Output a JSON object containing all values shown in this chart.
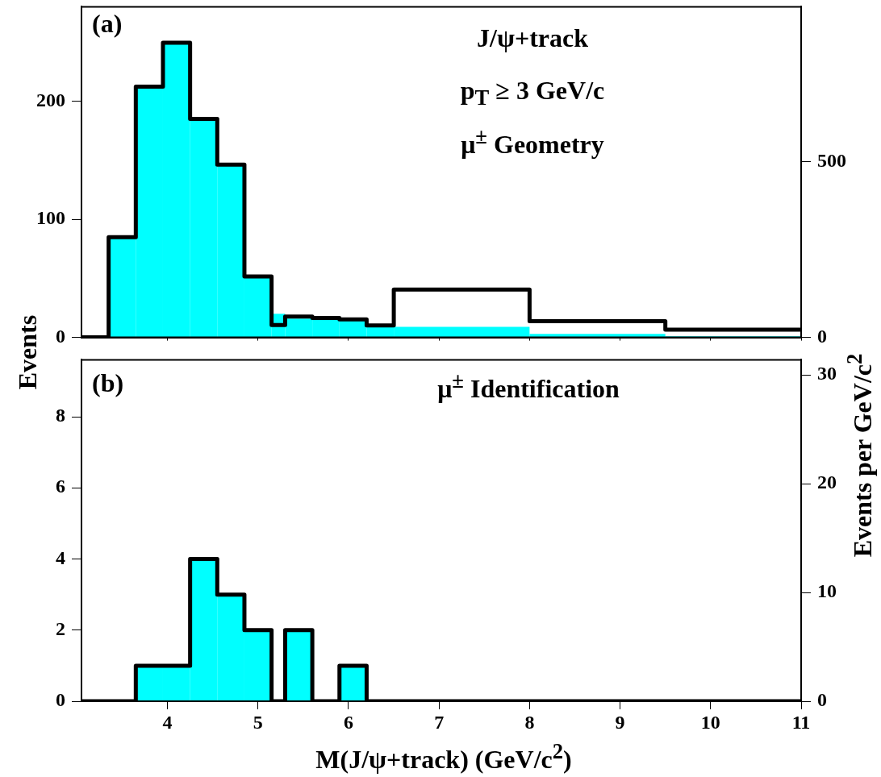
{
  "chart_data": [
    {
      "type": "histogram",
      "ylabel": "Events",
      "y2label": "Events per GeV/c$^{2}$",
      "annotations": [
        "(a)",
        "J/ψ+track",
        "p$_{T}$ ≥ 3 GeV/c",
        "μ$^{±}$ Geometry"
      ],
      "bins": [
        3.35,
        3.65,
        3.95,
        4.25,
        4.55,
        4.85,
        5.15,
        5.3,
        5.6,
        5.9,
        6.2,
        6.5,
        8,
        9.5,
        11
      ],
      "series": [
        {
          "color": "#00ffff",
          "values": [
            85,
            212,
            250,
            185,
            146,
            51,
            20,
            16,
            15,
            14,
            9,
            9,
            3,
            1
          ]
        },
        {
          "type": "step",
          "axis": "y2",
          "color": "#000000",
          "x": [
            3.05,
            3.35,
            3.65,
            3.95,
            4.25,
            4.55,
            4.85,
            5.15,
            5.3,
            5.6,
            5.9,
            6.2,
            6.5,
            8,
            9.5,
            11
          ],
          "values": [
            0,
            285,
            713,
            838,
            621,
            491,
            173,
            35,
            59,
            55,
            51,
            34,
            136,
            46,
            22,
            22
          ]
        }
      ],
      "xlim": [
        3.05,
        11
      ],
      "xticks": [
        4,
        5,
        6,
        7,
        8,
        9,
        10,
        11
      ],
      "ylim": [
        0,
        280
      ],
      "yticks": [
        0,
        100,
        200
      ],
      "y2lim": [
        0,
        940
      ],
      "y2ticks": [
        0,
        500
      ],
      "tick_labels": "y"
    },
    {
      "type": "histogram",
      "xlabel": "M(J/ψ+track) (GeV/c$^{2}$)",
      "annotations": [
        "(b)",
        "μ$^{±}$ Identification"
      ],
      "bins": [
        3.65,
        3.95,
        4.25,
        4.55,
        4.85,
        5.15,
        5.3,
        5.6,
        5.9,
        6.2
      ],
      "series": [
        {
          "color": "#00ffff",
          "values": [
            1,
            1,
            4,
            3,
            2,
            0,
            2,
            0,
            1
          ]
        },
        {
          "type": "step",
          "color": "#000000",
          "x": [
            3.05,
            3.65,
            3.95,
            4.25,
            4.55,
            4.85,
            5.15,
            5.3,
            5.6,
            5.9,
            6.2,
            11
          ],
          "values": [
            0,
            1,
            1,
            4,
            3,
            2,
            0,
            2,
            0,
            1,
            0,
            0
          ]
        }
      ],
      "xlim": [
        3.05,
        11
      ],
      "xticks": [
        4,
        5,
        6,
        7,
        8,
        9,
        10,
        11
      ],
      "ylim": [
        0,
        9.6
      ],
      "yticks": [
        0,
        2,
        4,
        6,
        8
      ],
      "y2lim": [
        0,
        31.4
      ],
      "y2ticks": [
        0,
        10,
        20,
        30
      ]
    }
  ]
}
